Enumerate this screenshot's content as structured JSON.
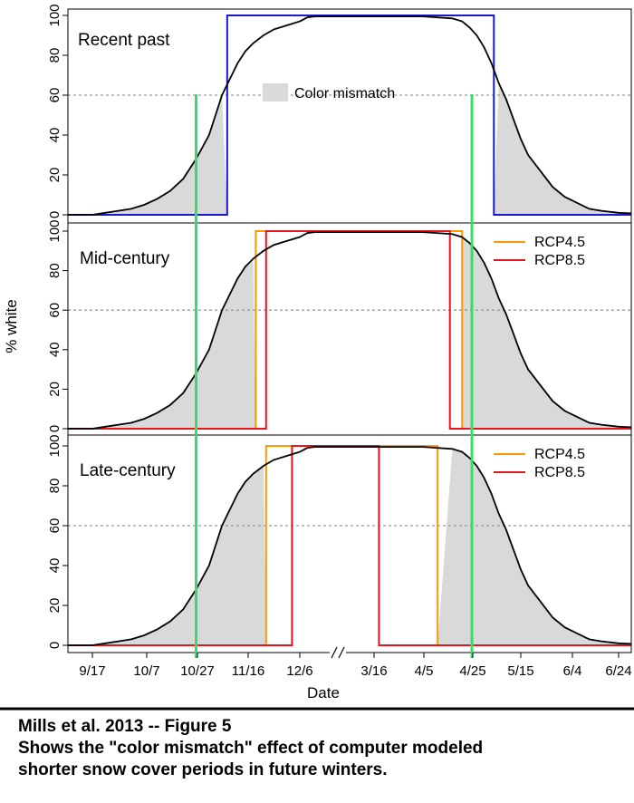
{
  "chart_data": {
    "type": "line",
    "ylabel": "% white",
    "xlabel": "Date",
    "x_ticks": [
      "9/17",
      "10/7",
      "10/27",
      "11/16",
      "12/6",
      "3/16",
      "4/5",
      "4/25",
      "5/15",
      "6/4",
      "6/24"
    ],
    "x_axis_break_between": [
      "12/6",
      "3/16"
    ],
    "ylim": [
      0,
      100
    ],
    "y_ticks": [
      0,
      20,
      40,
      60,
      80,
      100
    ],
    "threshold_line": 60,
    "reference_dates": [
      "10/27",
      "4/25"
    ],
    "colors": {
      "white_fraction": "#000000",
      "recent_past_coat": "#1a1acc",
      "rcp45": "#ff9900",
      "rcp85": "#e8141e",
      "mismatch_shading": "#d9d9d9",
      "reference_lines": "#33e066",
      "threshold": "#999999"
    },
    "panels": [
      {
        "label": "Recent past",
        "legend": [
          "Color mismatch"
        ],
        "white_fraction": [
          [
            -20,
            0
          ],
          [
            0,
            0
          ],
          [
            5,
            1
          ],
          [
            10,
            2
          ],
          [
            15,
            3
          ],
          [
            20,
            5
          ],
          [
            25,
            8
          ],
          [
            30,
            12
          ],
          [
            35,
            18
          ],
          [
            40,
            28
          ],
          [
            45,
            40
          ],
          [
            48,
            52
          ],
          [
            50,
            60
          ],
          [
            53,
            68
          ],
          [
            56,
            76
          ],
          [
            59,
            82
          ],
          [
            62,
            86
          ],
          [
            66,
            90
          ],
          [
            70,
            93
          ],
          [
            75,
            95
          ],
          [
            80,
            97
          ],
          [
            85,
            98
          ],
          [
            90,
            99
          ],
          [
            100,
            99.5
          ],
          [
            200,
            99.5
          ],
          [
            212,
            98.5
          ],
          [
            216,
            97
          ],
          [
            219,
            94
          ],
          [
            222,
            90
          ],
          [
            225,
            84
          ],
          [
            228,
            76
          ],
          [
            231,
            66
          ],
          [
            234,
            58
          ],
          [
            237,
            48
          ],
          [
            240,
            38
          ],
          [
            243,
            30
          ],
          [
            248,
            22
          ],
          [
            253,
            14
          ],
          [
            258,
            9
          ],
          [
            263,
            6
          ],
          [
            268,
            3
          ],
          [
            273,
            2
          ],
          [
            280,
            1
          ],
          [
            290,
            0.5
          ],
          [
            300,
            0
          ],
          [
            315,
            0
          ]
        ],
        "coat_series": [
          {
            "name": "",
            "off": 52,
            "on": 229
          }
        ]
      },
      {
        "label": "Mid-century",
        "legend": [
          "RCP4.5",
          "RCP8.5"
        ],
        "white_fraction": [
          [
            -20,
            0
          ],
          [
            0,
            0
          ],
          [
            5,
            1
          ],
          [
            10,
            2
          ],
          [
            15,
            3
          ],
          [
            20,
            5
          ],
          [
            25,
            8
          ],
          [
            30,
            12
          ],
          [
            35,
            18
          ],
          [
            40,
            28
          ],
          [
            45,
            40
          ],
          [
            48,
            52
          ],
          [
            50,
            60
          ],
          [
            53,
            68
          ],
          [
            56,
            76
          ],
          [
            59,
            82
          ],
          [
            62,
            86
          ],
          [
            66,
            90
          ],
          [
            70,
            93
          ],
          [
            75,
            95
          ],
          [
            80,
            97
          ],
          [
            85,
            98
          ],
          [
            90,
            99
          ],
          [
            100,
            99.5
          ],
          [
            200,
            99.5
          ],
          [
            212,
            98.5
          ],
          [
            216,
            97
          ],
          [
            219,
            94
          ],
          [
            222,
            90
          ],
          [
            225,
            84
          ],
          [
            228,
            76
          ],
          [
            231,
            66
          ],
          [
            234,
            58
          ],
          [
            237,
            48
          ],
          [
            240,
            38
          ],
          [
            243,
            30
          ],
          [
            248,
            22
          ],
          [
            253,
            14
          ],
          [
            258,
            9
          ],
          [
            263,
            6
          ],
          [
            268,
            3
          ],
          [
            273,
            2
          ],
          [
            280,
            1
          ],
          [
            290,
            0.5
          ],
          [
            300,
            0
          ],
          [
            315,
            0
          ]
        ],
        "coat_series": [
          {
            "name": "RCP4.5",
            "off": 63,
            "on": 216
          },
          {
            "name": "RCP8.5",
            "off": 67,
            "on": 211
          }
        ]
      },
      {
        "label": "Late-century",
        "legend": [
          "RCP4.5",
          "RCP8.5"
        ],
        "white_fraction": [
          [
            -20,
            0
          ],
          [
            0,
            0
          ],
          [
            5,
            1
          ],
          [
            10,
            2
          ],
          [
            15,
            3
          ],
          [
            20,
            5
          ],
          [
            25,
            8
          ],
          [
            30,
            12
          ],
          [
            35,
            18
          ],
          [
            40,
            28
          ],
          [
            45,
            40
          ],
          [
            48,
            52
          ],
          [
            50,
            60
          ],
          [
            53,
            68
          ],
          [
            56,
            76
          ],
          [
            59,
            82
          ],
          [
            62,
            86
          ],
          [
            66,
            90
          ],
          [
            70,
            93
          ],
          [
            75,
            95
          ],
          [
            80,
            97
          ],
          [
            85,
            98
          ],
          [
            90,
            99
          ],
          [
            100,
            99.5
          ],
          [
            200,
            99.5
          ],
          [
            212,
            98.5
          ],
          [
            216,
            97
          ],
          [
            219,
            94
          ],
          [
            222,
            90
          ],
          [
            225,
            84
          ],
          [
            228,
            76
          ],
          [
            231,
            66
          ],
          [
            234,
            58
          ],
          [
            237,
            48
          ],
          [
            240,
            38
          ],
          [
            243,
            30
          ],
          [
            248,
            22
          ],
          [
            253,
            14
          ],
          [
            258,
            9
          ],
          [
            263,
            6
          ],
          [
            268,
            3
          ],
          [
            273,
            2
          ],
          [
            280,
            1
          ],
          [
            290,
            0.5
          ],
          [
            300,
            0
          ],
          [
            315,
            0
          ]
        ],
        "coat_series": [
          {
            "name": "RCP4.5",
            "off": 67,
            "on": 206
          },
          {
            "name": "RCP8.5",
            "off": 77,
            "on": 182
          }
        ]
      }
    ]
  },
  "caption": {
    "line1": "Mills et al. 2013 -- Figure 5",
    "line2": "Shows the \"color mismatch\" effect of computer modeled",
    "line3": "shorter snow cover periods in future winters."
  }
}
